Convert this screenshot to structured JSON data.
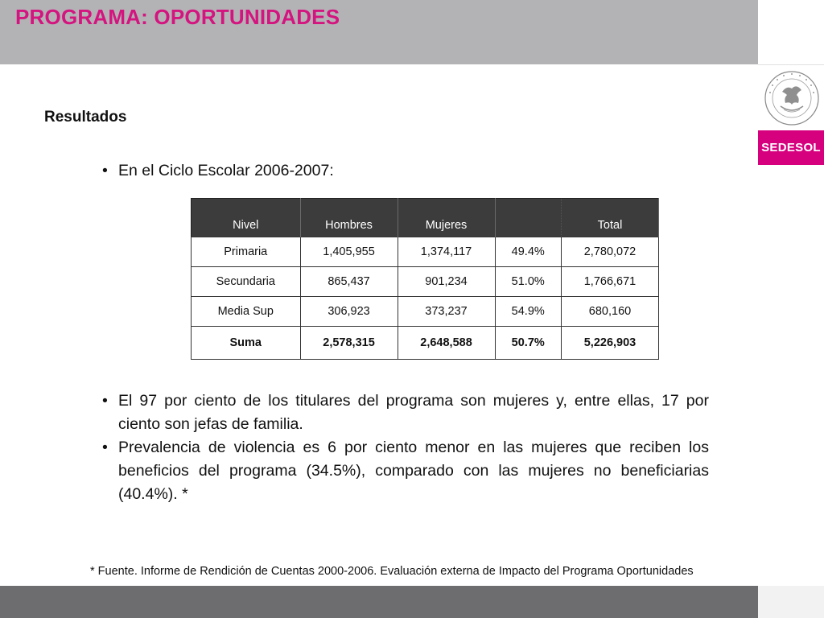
{
  "slide": {
    "title": "PROGRAMA: OPORTUNIDADES",
    "section_title": "Resultados",
    "bullet_intro": "En el Ciclo Escolar 2006-2007:",
    "bullets": [
      "El 97 por ciento de los titulares del programa son mujeres y, entre ellas, 17 por ciento son jefas de familia.",
      "Prevalencia de violencia es 6 por ciento menor en las mujeres que reciben los beneficios del programa (34.5%), comparado con las mujeres no beneficiarias (40.4%). *"
    ],
    "footnote": "* Fuente. Informe de Rendición de Cuentas 2000-2006. Evaluación externa de Impacto del Programa Oportunidades"
  },
  "brand": {
    "logo_text": "SEDESOL",
    "seal_icon": "mexican-coat-of-arms-seal",
    "accent_color": "#d6007e",
    "title_color": "#d4147f",
    "header_color": "#b3b3b6",
    "footer_color": "#6d6d6f"
  },
  "table": {
    "headers": [
      "Nivel",
      "Hombres",
      "Mujeres",
      "",
      "Total"
    ],
    "rows": [
      [
        "Primaria",
        "1,405,955",
        "1,374,117",
        "49.4%",
        "2,780,072"
      ],
      [
        "Secundaria",
        "865,437",
        "901,234",
        "51.0%",
        "1,766,671"
      ],
      [
        "Media Sup",
        "306,923",
        "373,237",
        "54.9%",
        "680,160"
      ]
    ],
    "sum_row": [
      "Suma",
      "2,578,315",
      "2,648,588",
      "50.7%",
      "5,226,903"
    ]
  }
}
